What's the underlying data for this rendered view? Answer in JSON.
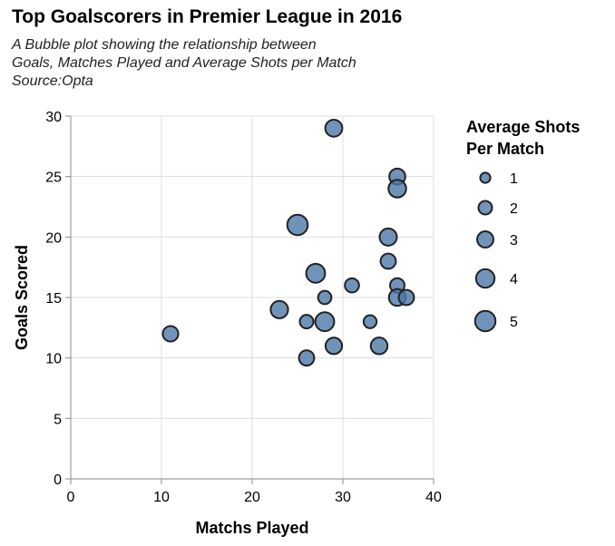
{
  "chart_data": {
    "type": "scatter",
    "title": "Top Goalscorers in Premier League in 2016",
    "subtitle": [
      "A Bubble plot showing the relationship between",
      "Goals, Matches Played and Average Shots per Match",
      "Source:Opta"
    ],
    "xlabel": "Matchs Played",
    "ylabel": "Goals Scored",
    "xlim": [
      0,
      40
    ],
    "ylim": [
      0,
      30
    ],
    "xticks": [
      0,
      10,
      20,
      30,
      40
    ],
    "yticks": [
      0,
      5,
      10,
      15,
      20,
      25,
      30
    ],
    "grid": true,
    "legend": {
      "title": [
        "Average Shots",
        "Per Match"
      ],
      "placement": "right",
      "sizes": [
        1,
        2,
        3,
        4,
        5
      ]
    },
    "colors": {
      "fill": "#4c78a8",
      "stroke": "#222222",
      "grid": "#dddddd",
      "axis": "#888888"
    },
    "points": [
      {
        "x": 29,
        "y": 29,
        "size": 3.3
      },
      {
        "x": 36,
        "y": 25,
        "size": 2.9
      },
      {
        "x": 36,
        "y": 24,
        "size": 3.6
      },
      {
        "x": 25,
        "y": 21,
        "size": 5.0
      },
      {
        "x": 35,
        "y": 20,
        "size": 3.4
      },
      {
        "x": 35,
        "y": 18,
        "size": 2.6
      },
      {
        "x": 27,
        "y": 17,
        "size": 4.2
      },
      {
        "x": 31,
        "y": 16,
        "size": 2.2
      },
      {
        "x": 36,
        "y": 16,
        "size": 2.3
      },
      {
        "x": 28,
        "y": 15,
        "size": 1.9
      },
      {
        "x": 36,
        "y": 15,
        "size": 3.2
      },
      {
        "x": 37,
        "y": 15,
        "size": 2.6
      },
      {
        "x": 23,
        "y": 14,
        "size": 3.5
      },
      {
        "x": 26,
        "y": 13,
        "size": 2.0
      },
      {
        "x": 28,
        "y": 13,
        "size": 4.2
      },
      {
        "x": 33,
        "y": 13,
        "size": 1.8
      },
      {
        "x": 11,
        "y": 12,
        "size": 2.7
      },
      {
        "x": 29,
        "y": 11,
        "size": 3.1
      },
      {
        "x": 34,
        "y": 11,
        "size": 3.2
      },
      {
        "x": 26,
        "y": 10,
        "size": 2.6
      }
    ]
  }
}
